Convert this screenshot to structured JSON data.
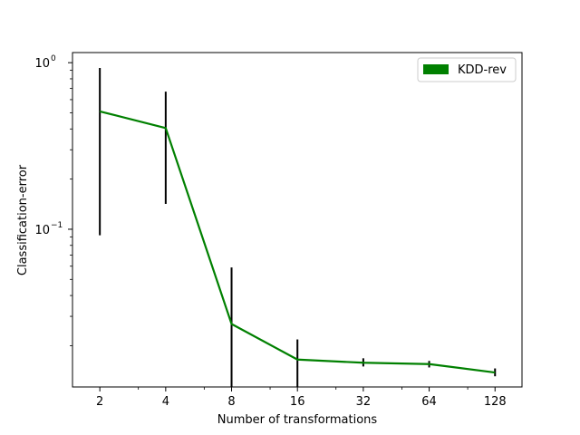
{
  "chart_data": {
    "type": "line",
    "title": "",
    "xlabel": "Number of transformations",
    "ylabel": "Classification-error",
    "x_scale": "log2",
    "y_scale": "log10",
    "x": [
      2,
      4,
      8,
      16,
      32,
      64,
      128
    ],
    "x_tick_labels": [
      "2",
      "4",
      "8",
      "16",
      "32",
      "64",
      "128"
    ],
    "y_tick_labels": [
      "10",
      "10"
    ],
    "y_tick_exponents": [
      "0",
      "−1"
    ],
    "xlim": [
      1.5,
      170
    ],
    "ylim": [
      0.0113,
      1.15
    ],
    "grid": false,
    "legend": {
      "position": "top-right"
    },
    "series": [
      {
        "name": "KDD-rev",
        "color": "#008000",
        "values": [
          0.51,
          0.405,
          0.027,
          0.0165,
          0.0158,
          0.0155,
          0.0138
        ],
        "error_low": [
          0.092,
          0.142,
          0.011,
          0.011,
          0.015,
          0.0148,
          0.0131
        ],
        "error_high": [
          0.93,
          0.67,
          0.059,
          0.0218,
          0.0168,
          0.0162,
          0.0146
        ],
        "error_color": "#000000"
      }
    ]
  }
}
